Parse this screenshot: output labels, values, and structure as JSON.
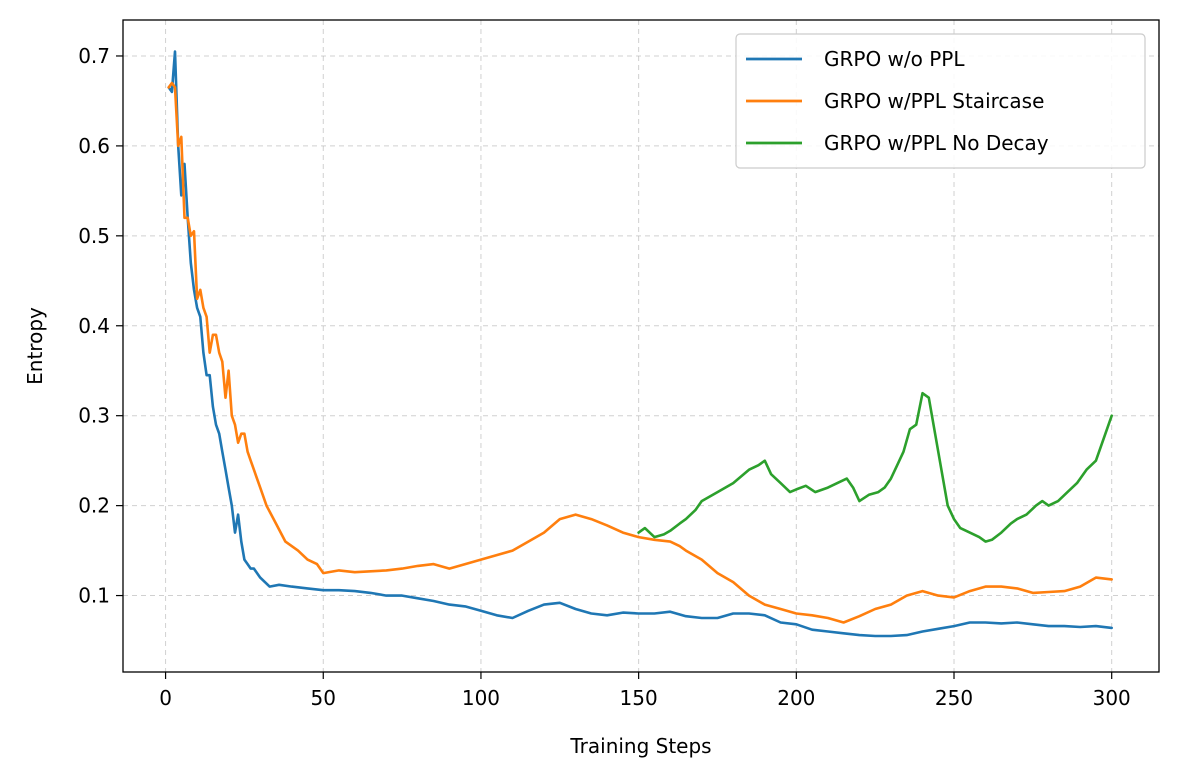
{
  "chart_data": {
    "type": "line",
    "title": "",
    "xlabel": "Training Steps",
    "ylabel": "Entropy",
    "xlim": [
      -13.5,
      315
    ],
    "ylim": [
      0.015,
      0.74
    ],
    "xticks": [
      0,
      50,
      100,
      150,
      200,
      250,
      300
    ],
    "yticks": [
      0.1,
      0.2,
      0.3,
      0.4,
      0.5,
      0.6,
      0.7
    ],
    "grid": true,
    "legend_position": "top-right",
    "series": [
      {
        "name": "GRPO w/o PPL",
        "color": "#1f77b4",
        "x": [
          1,
          2,
          3,
          4,
          5,
          6,
          7,
          8,
          9,
          10,
          11,
          12,
          13,
          14,
          15,
          16,
          17,
          18,
          19,
          20,
          21,
          22,
          23,
          24,
          25,
          26,
          27,
          28,
          30,
          33,
          36,
          40,
          45,
          50,
          55,
          60,
          65,
          70,
          75,
          80,
          85,
          90,
          95,
          100,
          105,
          110,
          115,
          120,
          125,
          130,
          135,
          140,
          145,
          150,
          155,
          160,
          165,
          170,
          175,
          180,
          185,
          190,
          195,
          200,
          205,
          210,
          215,
          220,
          225,
          230,
          235,
          240,
          245,
          250,
          255,
          260,
          265,
          270,
          275,
          280,
          285,
          290,
          295,
          300
        ],
        "y": [
          0.665,
          0.66,
          0.705,
          0.6,
          0.545,
          0.58,
          0.52,
          0.47,
          0.44,
          0.42,
          0.41,
          0.37,
          0.345,
          0.345,
          0.31,
          0.29,
          0.28,
          0.26,
          0.24,
          0.22,
          0.2,
          0.17,
          0.19,
          0.16,
          0.14,
          0.135,
          0.13,
          0.13,
          0.12,
          0.11,
          0.112,
          0.11,
          0.108,
          0.106,
          0.106,
          0.105,
          0.103,
          0.1,
          0.1,
          0.097,
          0.094,
          0.09,
          0.088,
          0.083,
          0.078,
          0.075,
          0.083,
          0.09,
          0.092,
          0.085,
          0.08,
          0.078,
          0.081,
          0.08,
          0.08,
          0.082,
          0.077,
          0.075,
          0.075,
          0.08,
          0.08,
          0.078,
          0.07,
          0.068,
          0.062,
          0.06,
          0.058,
          0.056,
          0.055,
          0.055,
          0.056,
          0.06,
          0.063,
          0.066,
          0.07,
          0.07,
          0.069,
          0.07,
          0.068,
          0.066,
          0.066,
          0.065,
          0.066,
          0.064
        ]
      },
      {
        "name": "GRPO w/PPL Staircase",
        "color": "#ff7f0e",
        "x": [
          1,
          2,
          3,
          4,
          5,
          6,
          7,
          8,
          9,
          10,
          11,
          12,
          13,
          14,
          15,
          16,
          17,
          18,
          19,
          20,
          21,
          22,
          23,
          24,
          25,
          26,
          27,
          28,
          29,
          30,
          32,
          35,
          38,
          42,
          45,
          48,
          50,
          55,
          60,
          65,
          70,
          75,
          80,
          85,
          90,
          95,
          100,
          105,
          110,
          115,
          120,
          125,
          130,
          135,
          140,
          145,
          150,
          155,
          160,
          163,
          165,
          170,
          175,
          180,
          185,
          190,
          195,
          200,
          205,
          210,
          215,
          220,
          225,
          230,
          235,
          240,
          245,
          250,
          255,
          260,
          265,
          270,
          275,
          280,
          285,
          290,
          295,
          300
        ],
        "y": [
          0.665,
          0.67,
          0.665,
          0.6,
          0.61,
          0.52,
          0.52,
          0.5,
          0.505,
          0.43,
          0.44,
          0.42,
          0.41,
          0.37,
          0.39,
          0.39,
          0.37,
          0.36,
          0.32,
          0.35,
          0.3,
          0.29,
          0.27,
          0.28,
          0.28,
          0.26,
          0.25,
          0.24,
          0.23,
          0.22,
          0.2,
          0.18,
          0.16,
          0.15,
          0.14,
          0.135,
          0.125,
          0.128,
          0.126,
          0.127,
          0.128,
          0.13,
          0.133,
          0.135,
          0.13,
          0.135,
          0.14,
          0.145,
          0.15,
          0.16,
          0.17,
          0.185,
          0.19,
          0.185,
          0.178,
          0.17,
          0.165,
          0.162,
          0.16,
          0.155,
          0.15,
          0.14,
          0.125,
          0.115,
          0.1,
          0.09,
          0.085,
          0.08,
          0.078,
          0.075,
          0.07,
          0.077,
          0.085,
          0.09,
          0.1,
          0.105,
          0.1,
          0.098,
          0.105,
          0.11,
          0.11,
          0.108,
          0.103,
          0.104,
          0.105,
          0.11,
          0.12,
          0.118
        ]
      },
      {
        "name": "GRPO w/PPL No Decay",
        "color": "#2ca02c",
        "x": [
          150,
          152,
          155,
          158,
          160,
          163,
          165,
          168,
          170,
          175,
          180,
          185,
          188,
          190,
          192,
          195,
          198,
          200,
          203,
          206,
          210,
          213,
          216,
          218,
          220,
          223,
          226,
          228,
          230,
          232,
          234,
          236,
          238,
          240,
          242,
          244,
          246,
          248,
          250,
          252,
          255,
          258,
          260,
          262,
          265,
          268,
          270,
          273,
          276,
          278,
          280,
          283,
          286,
          289,
          292,
          295,
          298,
          300
        ],
        "y": [
          0.17,
          0.175,
          0.165,
          0.168,
          0.172,
          0.18,
          0.185,
          0.195,
          0.205,
          0.215,
          0.225,
          0.24,
          0.245,
          0.25,
          0.235,
          0.225,
          0.215,
          0.218,
          0.222,
          0.215,
          0.22,
          0.225,
          0.23,
          0.22,
          0.205,
          0.212,
          0.215,
          0.22,
          0.23,
          0.245,
          0.26,
          0.285,
          0.29,
          0.325,
          0.32,
          0.28,
          0.24,
          0.2,
          0.185,
          0.175,
          0.17,
          0.165,
          0.16,
          0.162,
          0.17,
          0.18,
          0.185,
          0.19,
          0.2,
          0.205,
          0.2,
          0.205,
          0.215,
          0.225,
          0.24,
          0.25,
          0.28,
          0.3
        ]
      }
    ]
  }
}
